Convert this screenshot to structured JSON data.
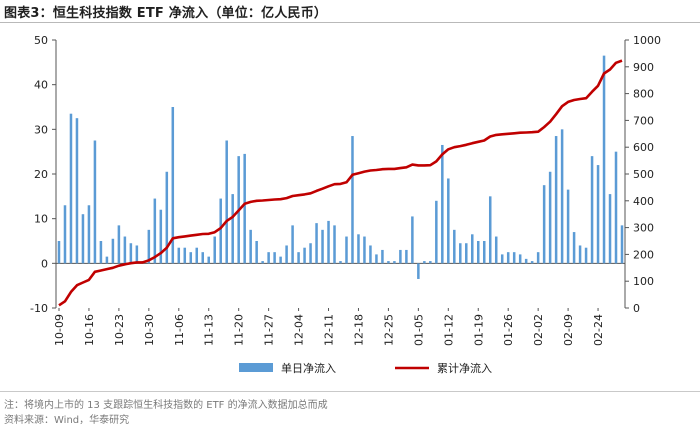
{
  "title": "图表3：恒生科技指数 ETF 净流入（单位：亿人民币）",
  "note": "注：将境内上市的 13 支跟踪恒生科技指数的 ETF 的净流入数据加总而成",
  "source": "资料来源：Wind，华泰研究",
  "colors": {
    "bar": "#5B9BD5",
    "line": "#C00000",
    "axis": "#555555"
  },
  "chart_data": {
    "type": "bar+line",
    "y_left": {
      "min": -10,
      "max": 50,
      "ticks": [
        -10,
        0,
        10,
        20,
        30,
        40,
        50
      ]
    },
    "y_right": {
      "min": 0,
      "max": 1000,
      "ticks": [
        0,
        100,
        200,
        300,
        400,
        500,
        600,
        700,
        800,
        900,
        1000
      ]
    },
    "x_tick_labels": [
      "10-09",
      "10-16",
      "10-23",
      "10-30",
      "11-06",
      "11-13",
      "11-20",
      "11-27",
      "12-04",
      "12-11",
      "12-18",
      "12-25",
      "01-05",
      "01-12",
      "01-19",
      "01-26",
      "02-02",
      "02-09",
      "02-24"
    ],
    "x_tick_index": [
      0,
      5,
      10,
      15,
      20,
      25,
      30,
      35,
      40,
      45,
      50,
      55,
      60,
      65,
      70,
      75,
      80,
      85,
      90
    ],
    "legend_position": "bottom",
    "series": [
      {
        "name": "单日净流入",
        "type": "bar",
        "axis": "left",
        "values": [
          5,
          13,
          33.5,
          32.5,
          11,
          13,
          27.5,
          5,
          1.5,
          5.5,
          8.5,
          6,
          4.5,
          4,
          0.5,
          7.5,
          14.5,
          12,
          20.5,
          35,
          3.5,
          3.5,
          2.5,
          3.5,
          2.5,
          1.5,
          6,
          14.5,
          27.5,
          15.5,
          24,
          24.5,
          7.5,
          5,
          0.5,
          2.5,
          2.5,
          1.5,
          4,
          8.5,
          2.5,
          3.5,
          4.5,
          9,
          7.5,
          9.5,
          8.5,
          0.5,
          6,
          28.5,
          6.5,
          6,
          4,
          2,
          3,
          0.5,
          0.5,
          3,
          3,
          10.5,
          -3.5,
          0.5,
          0.5,
          14,
          26.5,
          19,
          7.5,
          4.5,
          4.5,
          6.5,
          5,
          5,
          15,
          6,
          2,
          2.5,
          2.5,
          2,
          1,
          0.5,
          2.5,
          17.5,
          20.5,
          28.5,
          30,
          16.5,
          7,
          4,
          3.5,
          24,
          22,
          46.5,
          15.5,
          25,
          8.5
        ],
        "cumulative_right_axis": [
          10,
          25,
          60,
          85,
          95,
          105,
          135,
          140,
          145,
          150,
          158,
          163,
          167,
          170,
          170,
          178,
          190,
          205,
          225,
          260,
          264,
          267,
          270,
          273,
          276,
          277,
          283,
          298,
          325,
          340,
          364,
          389,
          396,
          400,
          401,
          403,
          405,
          406,
          410,
          418,
          421,
          424,
          428,
          437,
          445,
          454,
          462,
          463,
          469,
          497,
          503,
          509,
          513,
          515,
          518,
          519,
          519,
          522,
          525,
          535,
          532,
          532,
          533,
          547,
          573,
          592,
          600,
          604,
          609,
          615,
          620,
          625,
          640,
          646,
          648,
          650,
          652,
          654,
          655,
          656,
          658,
          675,
          695,
          723,
          753,
          769,
          776,
          780,
          783,
          807,
          829,
          875,
          890,
          915,
          923
        ]
      }
    ],
    "line_series_name": "累计净流入"
  }
}
